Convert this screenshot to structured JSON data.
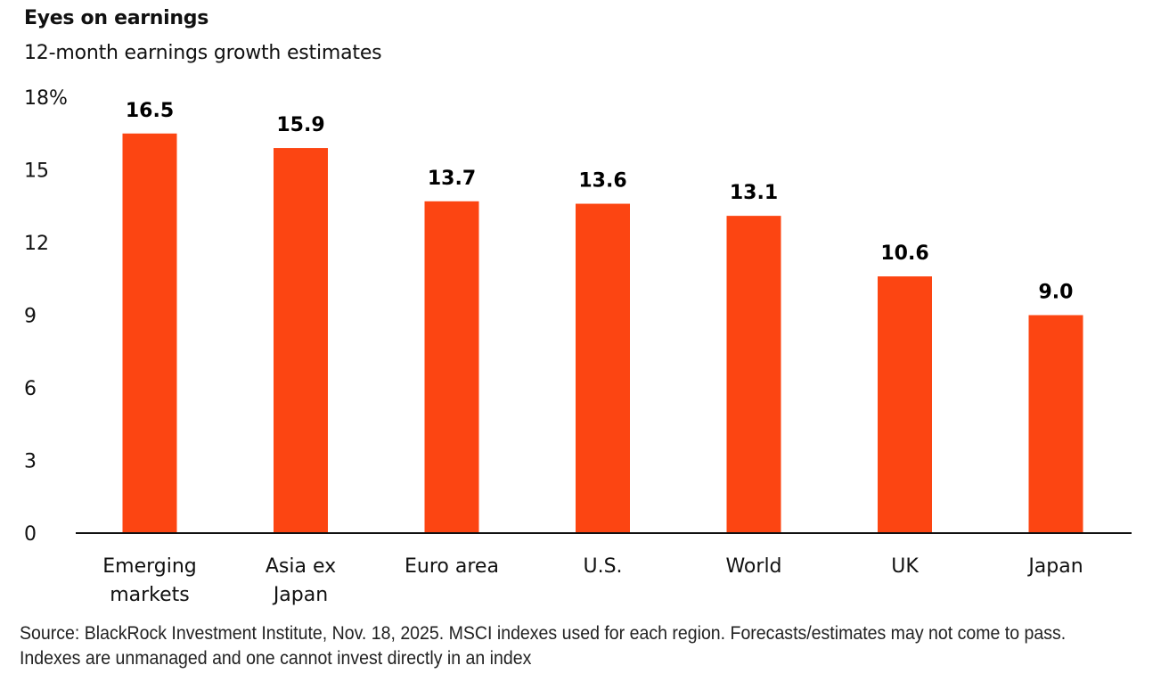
{
  "header": {
    "title": "Eyes on earnings",
    "subtitle": "12-month earnings growth estimates"
  },
  "source_note": {
    "line1": "Source: BlackRock Investment Institute, Nov. 18, 2025. MSCI indexes used for each region. Forecasts/estimates may not come to pass.",
    "line2": "Indexes are unmanaged and one cannot invest directly in an index"
  },
  "colors": {
    "bar": "#FC4512",
    "axis": "#111111"
  },
  "chart_data": {
    "type": "bar",
    "title": "Eyes on earnings",
    "subtitle": "12-month earnings growth estimates",
    "xlabel": "",
    "ylabel": "%",
    "ylim": [
      0,
      18
    ],
    "yticks": [
      0,
      3,
      6,
      9,
      12,
      15,
      18
    ],
    "ytick_labels": [
      "0",
      "3",
      "6",
      "9",
      "12",
      "15",
      "18%"
    ],
    "grid": false,
    "legend": "none",
    "categories": [
      [
        "Emerging",
        "markets"
      ],
      [
        "Asia ex",
        "Japan"
      ],
      [
        "Euro area"
      ],
      [
        "U.S."
      ],
      [
        "World"
      ],
      [
        "UK"
      ],
      [
        "Japan"
      ]
    ],
    "values": [
      16.5,
      15.9,
      13.7,
      13.6,
      13.1,
      10.6,
      9.0
    ],
    "value_labels": [
      "16.5",
      "15.9",
      "13.7",
      "13.6",
      "13.1",
      "10.6",
      "9.0"
    ]
  }
}
